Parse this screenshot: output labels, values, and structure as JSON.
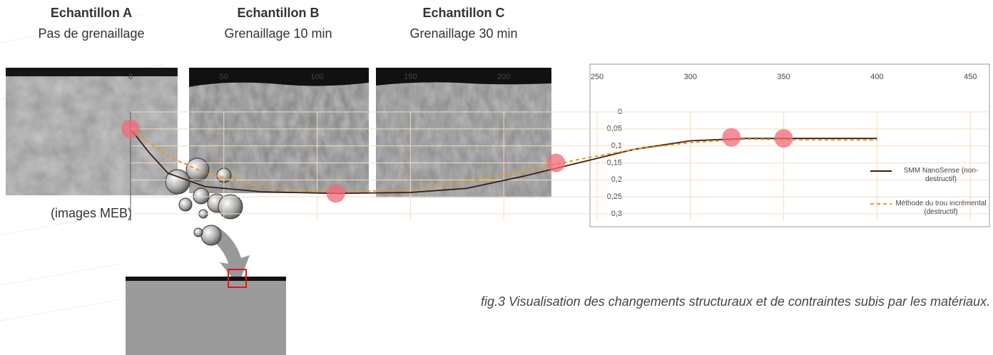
{
  "samples": [
    {
      "name": "Echantillon A",
      "treatment": "Pas de grenaillage"
    },
    {
      "name": "Echantillon B",
      "treatment": "Grenaillage 10 min"
    },
    {
      "name": "Echantillon C",
      "treatment": "Grenaillage 30 min"
    }
  ],
  "image_note": "(images MEB)",
  "caption": "fig.3 Visualisation des changements structuraux et de contraintes subis par les matériaux.",
  "chart_data": {
    "type": "line",
    "x": [
      0,
      10,
      20,
      40,
      70,
      110,
      150,
      180,
      210,
      240,
      270,
      300,
      330,
      360,
      400
    ],
    "series": [
      {
        "name": "SMM NanoSense (non-destructif)",
        "color": "#3a1c14",
        "dash": false,
        "values": [
          0.05,
          0.12,
          0.18,
          0.22,
          0.235,
          0.24,
          0.237,
          0.225,
          0.19,
          0.15,
          0.11,
          0.085,
          0.078,
          0.078,
          0.078
        ]
      },
      {
        "name": "Méthode du trou incrémental (destructif)",
        "color": "#f0961e",
        "dash": true,
        "values": [
          0.05,
          0.09,
          0.13,
          0.18,
          0.22,
          0.237,
          0.228,
          0.205,
          0.175,
          0.14,
          0.11,
          0.09,
          0.08,
          0.082,
          0.083
        ]
      }
    ],
    "points": {
      "color": "#f06a78",
      "x": [
        0,
        110,
        228,
        322,
        350
      ],
      "y": [
        0.05,
        0.24,
        0.15,
        0.075,
        0.078
      ]
    },
    "xlim": [
      0,
      450
    ],
    "xticks": [
      0,
      50,
      100,
      150,
      200,
      250,
      300,
      350,
      400,
      450
    ],
    "ylim": [
      0,
      0.3
    ],
    "yticks": [
      0,
      {
        "value": 0.05,
        "label": "0,05"
      },
      {
        "value": 0.1,
        "label": "0,1"
      },
      {
        "value": 0.15,
        "label": "0,15"
      },
      {
        "value": 0.2,
        "label": "0,2"
      },
      {
        "value": 0.25,
        "label": "0,25"
      },
      {
        "value": 0.3,
        "label": "0,3"
      }
    ],
    "y_inverted": true,
    "grid": true
  }
}
